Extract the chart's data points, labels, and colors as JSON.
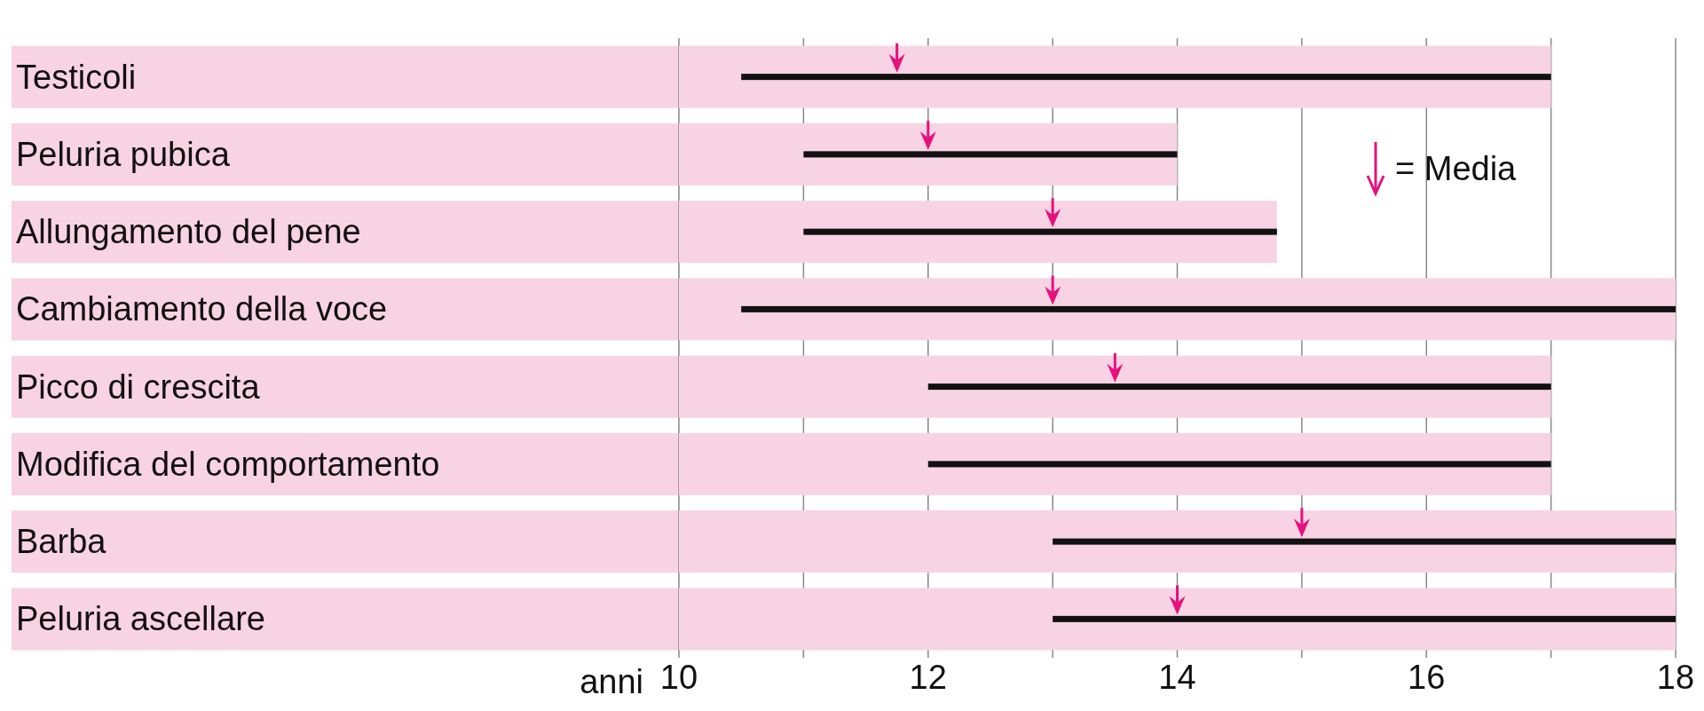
{
  "chart_data": {
    "type": "bar",
    "orientation": "horizontal",
    "xlabel": "anni",
    "categories": [
      "Testicoli",
      "Peluria pubica",
      "Allungamento del pene",
      "Cambiamento della voce",
      "Picco di crescita",
      "Modifica del comportamento",
      "Barba",
      "Peluria ascellare"
    ],
    "series": [
      {
        "color": "#f8d3e3",
        "base": [
          10,
          10,
          10,
          10,
          10,
          10,
          10,
          10
        ],
        "values": [
          7,
          4,
          4.8,
          8,
          7,
          7,
          8,
          8
        ]
      },
      {
        "color": "#111111",
        "base": [
          10.5,
          11,
          11,
          10.5,
          12,
          12,
          13,
          13
        ],
        "values": [
          6.5,
          3,
          3.8,
          7.5,
          5,
          5,
          5,
          5
        ]
      },
      {
        "type": "scatter",
        "name": "= Media",
        "color": "#e6117f",
        "values": [
          11.75,
          12,
          13,
          13,
          13.5,
          null,
          15,
          14
        ]
      }
    ],
    "xlim": [
      10,
      18
    ],
    "xticks": [
      10,
      {
        "value": 11,
        "label": null
      },
      12,
      {
        "value": 13,
        "label": null
      },
      14,
      {
        "value": 15,
        "label": null
      },
      16,
      {
        "value": 17,
        "label": null
      },
      18
    ],
    "grid": "x",
    "legend": "top right"
  }
}
